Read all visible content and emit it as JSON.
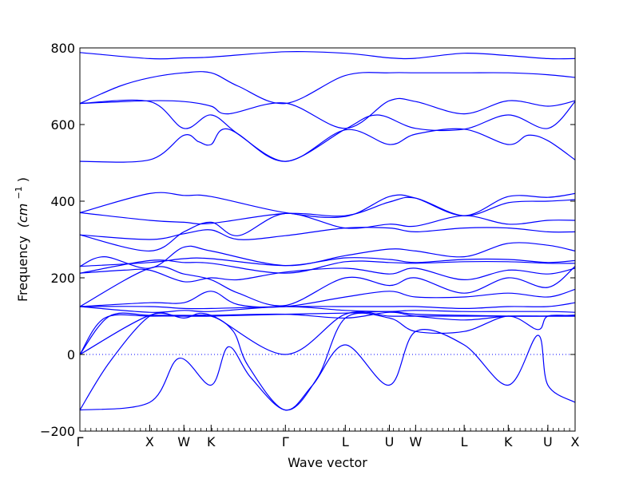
{
  "chart_data": {
    "type": "line",
    "title": "",
    "xlabel": "Wave vector",
    "ylabel_text": "Frequency",
    "ylabel_unit": "(cm",
    "ylabel_unit_exp": "−1",
    "ylabel_unit_close": ")",
    "ylim": [
      -200,
      800
    ],
    "yticks": [
      -200,
      0,
      200,
      400,
      600,
      800
    ],
    "xlim": [
      0,
      1
    ],
    "xticks": [
      {
        "label": "Γ",
        "x": 0.0
      },
      {
        "label": "X",
        "x": 0.141
      },
      {
        "label": "W",
        "x": 0.21
      },
      {
        "label": "K",
        "x": 0.265
      },
      {
        "label": "Γ",
        "x": 0.415
      },
      {
        "label": "L",
        "x": 0.536
      },
      {
        "label": "U",
        "x": 0.625
      },
      {
        "label": "W",
        "x": 0.678
      },
      {
        "label": "L",
        "x": 0.776
      },
      {
        "label": "K",
        "x": 0.865
      },
      {
        "label": "U",
        "x": 0.945
      },
      {
        "label": "X",
        "x": 1.0
      }
    ],
    "zero_line": true,
    "line_color": "#0000ff",
    "series": [
      {
        "x": [
          0,
          0.141,
          0.21,
          0.265,
          0.415,
          0.536,
          0.625,
          0.678,
          0.776,
          0.865,
          0.945,
          1.0
        ],
        "y": [
          788,
          772,
          774,
          776,
          790,
          786,
          774,
          773,
          786,
          780,
          772,
          772
        ]
      },
      {
        "x": [
          0,
          0.08,
          0.141,
          0.21,
          0.265,
          0.32,
          0.415,
          0.536,
          0.625,
          0.678,
          0.776,
          0.865,
          0.945,
          1.0
        ],
        "y": [
          655,
          700,
          722,
          735,
          735,
          700,
          655,
          728,
          735,
          735,
          735,
          735,
          730,
          723
        ]
      },
      {
        "x": [
          0,
          0.141,
          0.21,
          0.265,
          0.3,
          0.415,
          0.536,
          0.625,
          0.678,
          0.776,
          0.865,
          0.945,
          1.0
        ],
        "y": [
          655,
          662,
          660,
          648,
          628,
          656,
          590,
          662,
          660,
          628,
          662,
          648,
          662
        ]
      },
      {
        "x": [
          0,
          0.141,
          0.21,
          0.265,
          0.32,
          0.415,
          0.536,
          0.6,
          0.678,
          0.776,
          0.865,
          0.945,
          1.0
        ],
        "y": [
          655,
          660,
          590,
          625,
          575,
          504,
          588,
          625,
          590,
          588,
          625,
          590,
          660
        ]
      },
      {
        "x": [
          0,
          0.141,
          0.21,
          0.24,
          0.265,
          0.3,
          0.415,
          0.536,
          0.625,
          0.678,
          0.776,
          0.865,
          0.905,
          0.945,
          1.0
        ],
        "y": [
          504,
          508,
          572,
          555,
          548,
          588,
          504,
          586,
          548,
          575,
          588,
          548,
          572,
          558,
          508
        ]
      },
      {
        "x": [
          0,
          0.141,
          0.21,
          0.265,
          0.415,
          0.536,
          0.625,
          0.678,
          0.776,
          0.865,
          0.945,
          1.0
        ],
        "y": [
          370,
          420,
          415,
          412,
          370,
          360,
          412,
          408,
          362,
          412,
          410,
          420
        ]
      },
      {
        "x": [
          0,
          0.141,
          0.21,
          0.265,
          0.415,
          0.536,
          0.625,
          0.678,
          0.776,
          0.865,
          0.945,
          1.0
        ],
        "y": [
          370,
          350,
          345,
          342,
          368,
          362,
          398,
          408,
          362,
          396,
          400,
          404
        ]
      },
      {
        "x": [
          0,
          0.141,
          0.21,
          0.265,
          0.32,
          0.415,
          0.536,
          0.625,
          0.678,
          0.776,
          0.865,
          0.945,
          1.0
        ],
        "y": [
          312,
          270,
          320,
          345,
          310,
          368,
          330,
          340,
          335,
          362,
          340,
          350,
          350
        ]
      },
      {
        "x": [
          0,
          0.141,
          0.21,
          0.265,
          0.32,
          0.415,
          0.536,
          0.625,
          0.678,
          0.776,
          0.865,
          0.945,
          1.0
        ],
        "y": [
          312,
          300,
          315,
          325,
          300,
          310,
          330,
          330,
          320,
          330,
          330,
          320,
          320
        ]
      },
      {
        "x": [
          0,
          0.05,
          0.141,
          0.21,
          0.265,
          0.415,
          0.536,
          0.625,
          0.678,
          0.776,
          0.865,
          0.945,
          1.0
        ],
        "y": [
          230,
          255,
          225,
          280,
          270,
          232,
          258,
          275,
          270,
          255,
          290,
          285,
          270
        ]
      },
      {
        "x": [
          0,
          0.141,
          0.21,
          0.265,
          0.415,
          0.536,
          0.625,
          0.678,
          0.776,
          0.865,
          0.945,
          1.0
        ],
        "y": [
          230,
          240,
          250,
          250,
          232,
          252,
          248,
          240,
          248,
          248,
          240,
          245
        ]
      },
      {
        "x": [
          0,
          0.141,
          0.21,
          0.265,
          0.415,
          0.536,
          0.625,
          0.678,
          0.776,
          0.865,
          0.945,
          1.0
        ],
        "y": [
          212,
          245,
          240,
          238,
          212,
          242,
          240,
          238,
          242,
          242,
          238,
          238
        ]
      },
      {
        "x": [
          0,
          0.09,
          0.141,
          0.21,
          0.265,
          0.32,
          0.415,
          0.536,
          0.625,
          0.678,
          0.776,
          0.865,
          0.945,
          1.0
        ],
        "y": [
          212,
          220,
          220,
          190,
          200,
          195,
          215,
          225,
          210,
          225,
          195,
          220,
          210,
          225
        ]
      },
      {
        "x": [
          0,
          0.141,
          0.21,
          0.265,
          0.32,
          0.415,
          0.536,
          0.625,
          0.678,
          0.776,
          0.865,
          0.945,
          1.0
        ],
        "y": [
          125,
          225,
          210,
          195,
          160,
          128,
          200,
          180,
          200,
          160,
          200,
          175,
          230
        ]
      },
      {
        "x": [
          0,
          0.141,
          0.21,
          0.265,
          0.32,
          0.415,
          0.536,
          0.625,
          0.678,
          0.776,
          0.865,
          0.945,
          1.0
        ],
        "y": [
          125,
          135,
          135,
          165,
          130,
          125,
          150,
          165,
          150,
          150,
          160,
          150,
          170
        ]
      },
      {
        "x": [
          0,
          0.141,
          0.21,
          0.265,
          0.415,
          0.536,
          0.625,
          0.678,
          0.776,
          0.865,
          0.945,
          1.0
        ],
        "y": [
          125,
          125,
          120,
          120,
          125,
          125,
          125,
          125,
          120,
          125,
          125,
          135
        ]
      },
      {
        "x": [
          0,
          0.141,
          0.21,
          0.265,
          0.415,
          0.536,
          0.625,
          0.678,
          0.776,
          0.865,
          0.945,
          1.0
        ],
        "y": [
          125,
          110,
          115,
          112,
          125,
          115,
          112,
          115,
          112,
          112,
          112,
          110
        ]
      },
      {
        "x": [
          0,
          0.05,
          0.141,
          0.21,
          0.265,
          0.415,
          0.536,
          0.625,
          0.678,
          0.776,
          0.865,
          0.945,
          1.0
        ],
        "y": [
          0,
          95,
          100,
          100,
          100,
          105,
          108,
          112,
          105,
          102,
          100,
          100,
          103
        ]
      },
      {
        "x": [
          0,
          0.06,
          0.141,
          0.21,
          0.265,
          0.415,
          0.536,
          0.625,
          0.678,
          0.776,
          0.865,
          0.945,
          1.0
        ],
        "y": [
          0,
          100,
          102,
          102,
          102,
          105,
          95,
          110,
          100,
          90,
          100,
          100,
          100
        ]
      },
      {
        "x": [
          0,
          0.141,
          0.2,
          0.265,
          0.3,
          0.345,
          0.415,
          0.47,
          0.536,
          0.625,
          0.678,
          0.776,
          0.865,
          0.925,
          0.945,
          1.0
        ],
        "y": [
          -145,
          -125,
          -10,
          -80,
          20,
          -60,
          -145,
          -80,
          25,
          -80,
          60,
          25,
          -80,
          50,
          -80,
          -125
        ]
      },
      {
        "x": [
          0,
          0.06,
          0.141,
          0.2,
          0.265,
          0.31,
          0.34,
          0.415,
          0.48,
          0.536,
          0.625,
          0.678,
          0.776,
          0.865,
          0.925,
          0.945,
          1.0
        ],
        "y": [
          -145,
          -20,
          100,
          100,
          100,
          60,
          -30,
          -145,
          -60,
          95,
          95,
          60,
          60,
          100,
          65,
          100,
          100
        ]
      },
      {
        "x": [
          0,
          0.141,
          0.21,
          0.265,
          0.415,
          0.536,
          0.625,
          0.678,
          0.776,
          0.865,
          0.945,
          1.0
        ],
        "y": [
          0,
          102,
          95,
          102,
          0,
          105,
          100,
          100,
          100,
          100,
          100,
          100
        ]
      }
    ]
  }
}
